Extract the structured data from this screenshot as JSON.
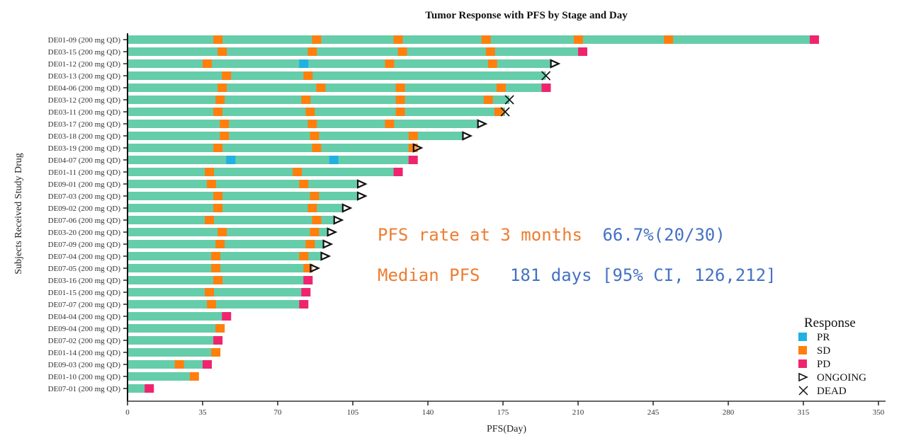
{
  "chart_data": {
    "type": "bar",
    "subtype": "swimmer-plot",
    "title": "Tumor Response with PFS by Stage and Day",
    "xlabel": "PFS(Day)",
    "ylabel": "Subjects Received Study Drug",
    "xlim": [
      0,
      350
    ],
    "xticks": [
      0,
      35,
      70,
      105,
      140,
      175,
      210,
      245,
      280,
      315,
      350
    ],
    "grid": false,
    "colors": {
      "bar": "#66cdaa",
      "PR": "#1fb1e3",
      "SD": "#ff7f0e",
      "PD": "#f0246e",
      "marker": "#111111",
      "annot_label": "#ed7d31",
      "annot_value": "#4472c4"
    },
    "legend": {
      "title": "Response",
      "position": "bottom-right",
      "items": [
        {
          "key": "PR",
          "label": "PR",
          "kind": "square"
        },
        {
          "key": "SD",
          "label": "SD",
          "kind": "square"
        },
        {
          "key": "PD",
          "label": "PD",
          "kind": "square"
        },
        {
          "key": "ONGOING",
          "label": "ONGOING",
          "kind": "triangle"
        },
        {
          "key": "DEAD",
          "label": "DEAD",
          "kind": "cross"
        }
      ]
    },
    "subjects": [
      {
        "label": "DE01-09 (200 mg QD)",
        "pfs": 322,
        "status": "",
        "assessments": [
          {
            "day": 40,
            "r": "SD"
          },
          {
            "day": 86,
            "r": "SD"
          },
          {
            "day": 124,
            "r": "SD"
          },
          {
            "day": 165,
            "r": "SD"
          },
          {
            "day": 208,
            "r": "SD"
          },
          {
            "day": 250,
            "r": "SD"
          },
          {
            "day": 318,
            "r": "PD"
          }
        ]
      },
      {
        "label": "DE03-15 (200 mg QD)",
        "pfs": 214,
        "status": "",
        "assessments": [
          {
            "day": 42,
            "r": "SD"
          },
          {
            "day": 84,
            "r": "SD"
          },
          {
            "day": 126,
            "r": "SD"
          },
          {
            "day": 167,
            "r": "SD"
          },
          {
            "day": 210,
            "r": "PD"
          }
        ]
      },
      {
        "label": "DE01-12 (200 mg QD)",
        "pfs": 197,
        "status": "ONGOING",
        "assessments": [
          {
            "day": 35,
            "r": "SD"
          },
          {
            "day": 80,
            "r": "PR"
          },
          {
            "day": 120,
            "r": "SD"
          },
          {
            "day": 168,
            "r": "SD"
          }
        ]
      },
      {
        "label": "DE03-13 (200 mg QD)",
        "pfs": 195,
        "status": "DEAD",
        "assessments": [
          {
            "day": 44,
            "r": "SD"
          },
          {
            "day": 82,
            "r": "SD"
          }
        ]
      },
      {
        "label": "DE04-06 (200 mg QD)",
        "pfs": 197,
        "status": "",
        "assessments": [
          {
            "day": 42,
            "r": "SD"
          },
          {
            "day": 88,
            "r": "SD"
          },
          {
            "day": 125,
            "r": "SD"
          },
          {
            "day": 172,
            "r": "SD"
          },
          {
            "day": 193,
            "r": "PD"
          }
        ]
      },
      {
        "label": "DE03-12 (200 mg QD)",
        "pfs": 178,
        "status": "DEAD",
        "assessments": [
          {
            "day": 41,
            "r": "SD"
          },
          {
            "day": 81,
            "r": "SD"
          },
          {
            "day": 125,
            "r": "SD"
          },
          {
            "day": 166,
            "r": "SD"
          }
        ]
      },
      {
        "label": "DE03-11 (200 mg QD)",
        "pfs": 176,
        "status": "DEAD",
        "assessments": [
          {
            "day": 40,
            "r": "SD"
          },
          {
            "day": 83,
            "r": "SD"
          },
          {
            "day": 125,
            "r": "SD"
          },
          {
            "day": 171,
            "r": "SD"
          }
        ]
      },
      {
        "label": "DE03-17 (200 mg QD)",
        "pfs": 163,
        "status": "ONGOING",
        "assessments": [
          {
            "day": 43,
            "r": "SD"
          },
          {
            "day": 84,
            "r": "SD"
          },
          {
            "day": 120,
            "r": "SD"
          }
        ]
      },
      {
        "label": "DE03-18 (200 mg QD)",
        "pfs": 156,
        "status": "ONGOING",
        "assessments": [
          {
            "day": 43,
            "r": "SD"
          },
          {
            "day": 85,
            "r": "SD"
          },
          {
            "day": 131,
            "r": "SD"
          }
        ]
      },
      {
        "label": "DE03-19 (200 mg QD)",
        "pfs": 133,
        "status": "ONGOING",
        "assessments": [
          {
            "day": 40,
            "r": "SD"
          },
          {
            "day": 86,
            "r": "SD"
          },
          {
            "day": 131,
            "r": "SD"
          }
        ]
      },
      {
        "label": "DE04-07 (200 mg QD)",
        "pfs": 135,
        "status": "",
        "assessments": [
          {
            "day": 46,
            "r": "PR"
          },
          {
            "day": 94,
            "r": "PR"
          },
          {
            "day": 131,
            "r": "PD"
          }
        ]
      },
      {
        "label": "DE01-11 (200 mg QD)",
        "pfs": 128,
        "status": "",
        "assessments": [
          {
            "day": 36,
            "r": "SD"
          },
          {
            "day": 77,
            "r": "SD"
          },
          {
            "day": 124,
            "r": "PD"
          }
        ]
      },
      {
        "label": "DE09-01 (200 mg QD)",
        "pfs": 107,
        "status": "ONGOING",
        "assessments": [
          {
            "day": 37,
            "r": "SD"
          },
          {
            "day": 80,
            "r": "SD"
          }
        ]
      },
      {
        "label": "DE07-03 (200 mg QD)",
        "pfs": 107,
        "status": "ONGOING",
        "assessments": [
          {
            "day": 40,
            "r": "SD"
          },
          {
            "day": 85,
            "r": "SD"
          }
        ]
      },
      {
        "label": "DE09-02 (200 mg QD)",
        "pfs": 100,
        "status": "ONGOING",
        "assessments": [
          {
            "day": 40,
            "r": "SD"
          },
          {
            "day": 84,
            "r": "SD"
          }
        ]
      },
      {
        "label": "DE07-06 (200 mg QD)",
        "pfs": 96,
        "status": "ONGOING",
        "assessments": [
          {
            "day": 36,
            "r": "SD"
          },
          {
            "day": 86,
            "r": "SD"
          }
        ]
      },
      {
        "label": "DE03-20 (200 mg QD)",
        "pfs": 93,
        "status": "ONGOING",
        "assessments": [
          {
            "day": 42,
            "r": "SD"
          },
          {
            "day": 85,
            "r": "SD"
          }
        ]
      },
      {
        "label": "DE07-09 (200 mg QD)",
        "pfs": 91,
        "status": "ONGOING",
        "assessments": [
          {
            "day": 41,
            "r": "SD"
          },
          {
            "day": 83,
            "r": "SD"
          }
        ]
      },
      {
        "label": "DE07-04 (200 mg QD)",
        "pfs": 90,
        "status": "ONGOING",
        "assessments": [
          {
            "day": 39,
            "r": "SD"
          },
          {
            "day": 80,
            "r": "SD"
          }
        ]
      },
      {
        "label": "DE07-05 (200 mg QD)",
        "pfs": 85,
        "status": "ONGOING",
        "assessments": [
          {
            "day": 39,
            "r": "SD"
          },
          {
            "day": 82,
            "r": "SD"
          }
        ]
      },
      {
        "label": "DE03-16 (200 mg QD)",
        "pfs": 86,
        "status": "",
        "assessments": [
          {
            "day": 40,
            "r": "SD"
          },
          {
            "day": 82,
            "r": "PD"
          }
        ]
      },
      {
        "label": "DE01-15 (200 mg QD)",
        "pfs": 85,
        "status": "",
        "assessments": [
          {
            "day": 36,
            "r": "SD"
          },
          {
            "day": 81,
            "r": "PD"
          }
        ]
      },
      {
        "label": "DE07-07 (200 mg QD)",
        "pfs": 84,
        "status": "",
        "assessments": [
          {
            "day": 37,
            "r": "SD"
          },
          {
            "day": 80,
            "r": "PD"
          }
        ]
      },
      {
        "label": "DE04-04 (200 mg QD)",
        "pfs": 48,
        "status": "",
        "assessments": [
          {
            "day": 44,
            "r": "PD"
          }
        ]
      },
      {
        "label": "DE09-04 (200 mg QD)",
        "pfs": 45,
        "status": "",
        "assessments": [
          {
            "day": 41,
            "r": "SD"
          }
        ]
      },
      {
        "label": "DE07-02 (200 mg QD)",
        "pfs": 44,
        "status": "",
        "assessments": [
          {
            "day": 40,
            "r": "PD"
          }
        ]
      },
      {
        "label": "DE01-14 (200 mg QD)",
        "pfs": 43,
        "status": "",
        "assessments": [
          {
            "day": 39,
            "r": "SD"
          }
        ]
      },
      {
        "label": "DE09-03 (200 mg QD)",
        "pfs": 39,
        "status": "",
        "assessments": [
          {
            "day": 22,
            "r": "SD"
          },
          {
            "day": 35,
            "r": "PD"
          }
        ]
      },
      {
        "label": "DE01-10 (200 mg QD)",
        "pfs": 33,
        "status": "",
        "assessments": [
          {
            "day": 29,
            "r": "SD"
          }
        ]
      },
      {
        "label": "DE07-01 (200 mg QD)",
        "pfs": 12,
        "status": "",
        "assessments": [
          {
            "day": 8,
            "r": "PD"
          }
        ]
      }
    ],
    "annotations": [
      {
        "label": "PFS rate at 3 months",
        "value": "66.7%(20/30)"
      },
      {
        "label": "Median PFS",
        "value": "181 days [95% CI, 126,212]"
      }
    ]
  }
}
